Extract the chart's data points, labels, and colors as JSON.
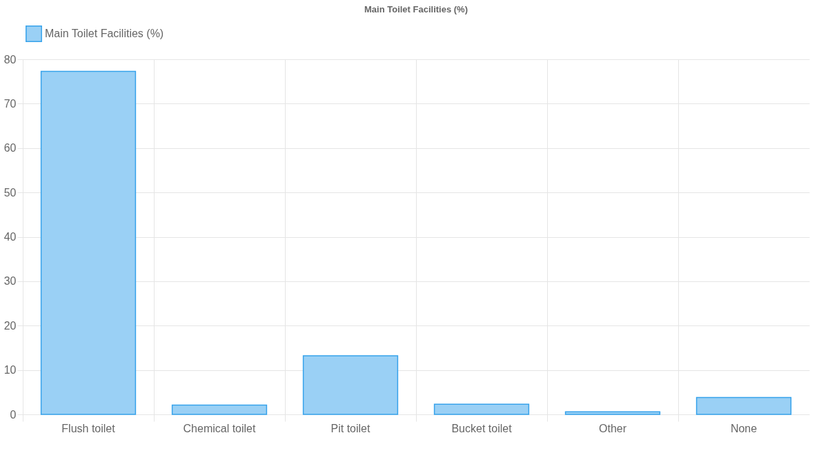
{
  "chart_data": {
    "type": "bar",
    "title": "Main Toilet Facilities (%)",
    "categories": [
      "Flush toilet",
      "Chemical toilet",
      "Pit toilet",
      "Bucket toilet",
      "Other",
      "None"
    ],
    "series": [
      {
        "name": "Main Toilet Facilities (%)",
        "color": "#9ad0f5",
        "values": [
          77.3,
          2.1,
          13.2,
          2.3,
          0.6,
          3.8
        ]
      }
    ],
    "ylim": [
      0,
      80
    ],
    "yticks": [
      0,
      10,
      20,
      30,
      40,
      50,
      60,
      70,
      80
    ],
    "grid": true,
    "legend": "top"
  }
}
